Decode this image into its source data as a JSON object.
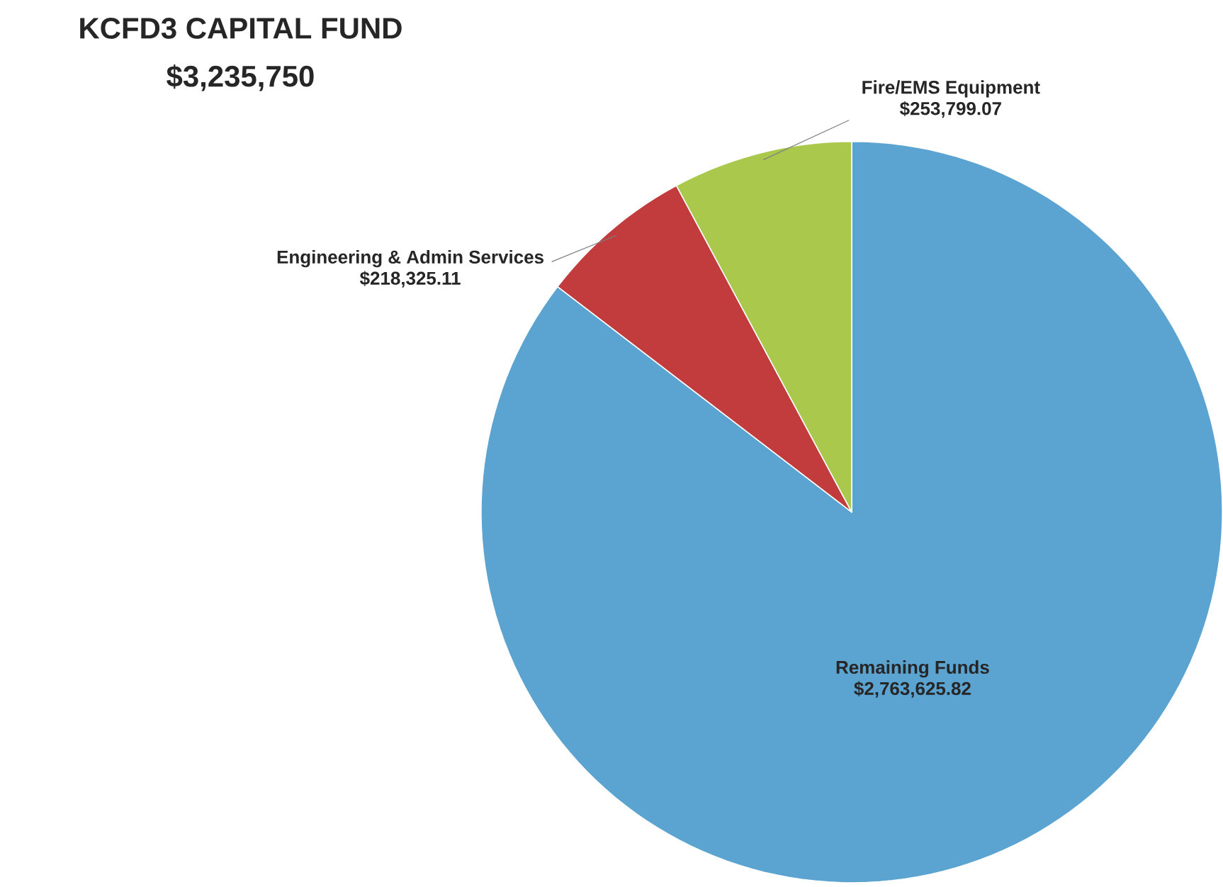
{
  "chart_data": {
    "type": "pie",
    "title": "KCFD3 CAPITAL FUND",
    "subtitle": "$3,235,750",
    "categories": [
      "Remaining Funds",
      "Engineering & Admin Services",
      "Fire/EMS Equipment"
    ],
    "values": [
      2763625.82,
      218325.11,
      253799.07
    ],
    "value_labels": [
      "$2,763,625.82",
      "$218,325.11",
      "$253,799.07"
    ],
    "colors": [
      "#5ba3d0",
      "#c23b3d",
      "#a9c84c"
    ]
  }
}
